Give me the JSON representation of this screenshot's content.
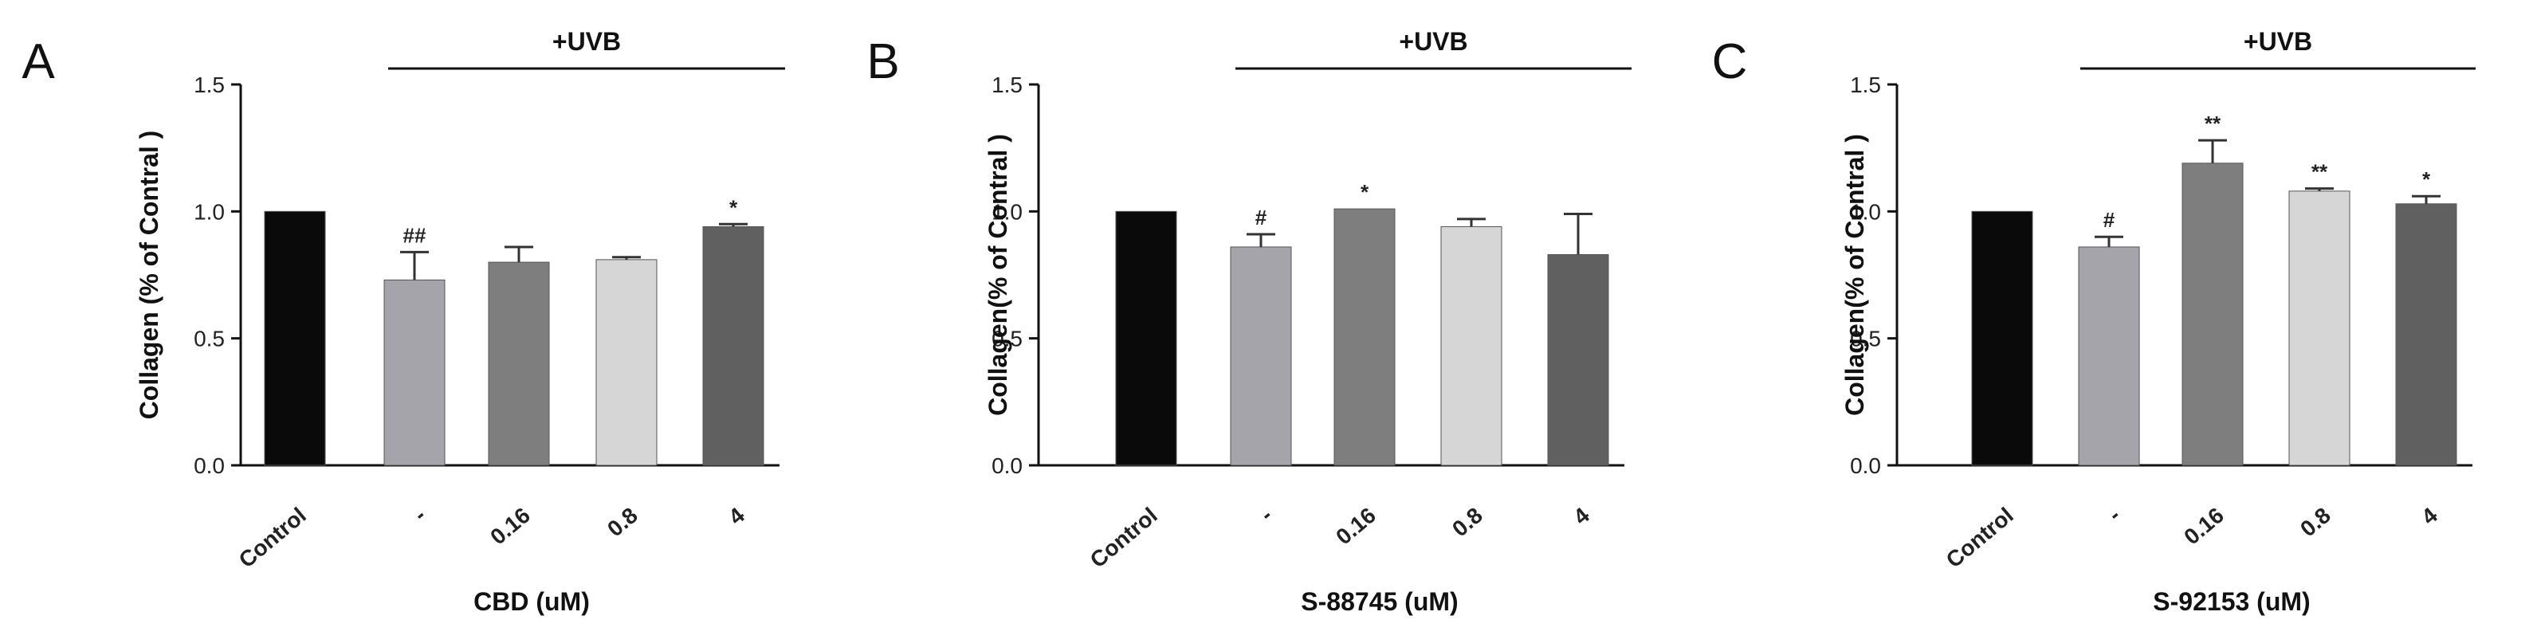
{
  "chart_data": [
    {
      "type": "bar",
      "panel_label": "A",
      "title": "",
      "treatment_label": "+UVB",
      "ylabel": "Collagen (% of Contral )",
      "xlabel": "CBD (uM)",
      "ylim": [
        0,
        1.5
      ],
      "yticks": [
        "0.0",
        "0.5",
        "1.0",
        "1.5"
      ],
      "ytick_values": [
        0,
        0.5,
        1.0,
        1.5
      ],
      "categories": [
        "Control",
        "-",
        "0.16",
        "0.8",
        "4"
      ],
      "values": [
        1.0,
        0.73,
        0.8,
        0.81,
        0.94
      ],
      "errors": [
        0.0,
        0.11,
        0.06,
        0.01,
        0.01
      ],
      "annotations": [
        "",
        "##",
        "",
        "",
        "*"
      ],
      "colors": [
        "#0a0a0a",
        "#a4a4aa",
        "#7e7e7e",
        "#d6d6d6",
        "#606060"
      ],
      "grid": false
    },
    {
      "type": "bar",
      "panel_label": "B",
      "title": "",
      "treatment_label": "+UVB",
      "ylabel": "Collagen(% of Contral )",
      "xlabel": "S-88745 (uM)",
      "ylim": [
        0,
        1.5
      ],
      "yticks": [
        "0.0",
        "0.5",
        "1.0",
        "1.5"
      ],
      "ytick_values": [
        0,
        0.5,
        1.0,
        1.5
      ],
      "categories": [
        "Control",
        "-",
        "0.16",
        "0.8",
        "4"
      ],
      "values": [
        1.0,
        0.86,
        1.01,
        0.94,
        0.83
      ],
      "errors": [
        0.0,
        0.05,
        0.0,
        0.03,
        0.16
      ],
      "annotations": [
        "",
        "#",
        "*",
        "",
        ""
      ],
      "colors": [
        "#0a0a0a",
        "#a4a4aa",
        "#7e7e7e",
        "#d6d6d6",
        "#606060"
      ],
      "grid": false
    },
    {
      "type": "bar",
      "panel_label": "C",
      "title": "",
      "treatment_label": "+UVB",
      "ylabel": "Collagen(% of Contral )",
      "xlabel": "S-92153 (uM)",
      "ylim": [
        0,
        1.5
      ],
      "yticks": [
        "0.0",
        "0.5",
        "1.0",
        "1.5"
      ],
      "ytick_values": [
        0,
        0.5,
        1.0,
        1.5
      ],
      "categories": [
        "Control",
        "-",
        "0.16",
        "0.8",
        "4"
      ],
      "values": [
        1.0,
        0.86,
        1.19,
        1.08,
        1.03
      ],
      "errors": [
        0.0,
        0.04,
        0.09,
        0.01,
        0.03
      ],
      "annotations": [
        "",
        "#",
        "**",
        "**",
        "*"
      ],
      "colors": [
        "#0a0a0a",
        "#a4a4aa",
        "#7e7e7e",
        "#d6d6d6",
        "#606060"
      ],
      "grid": false
    }
  ]
}
